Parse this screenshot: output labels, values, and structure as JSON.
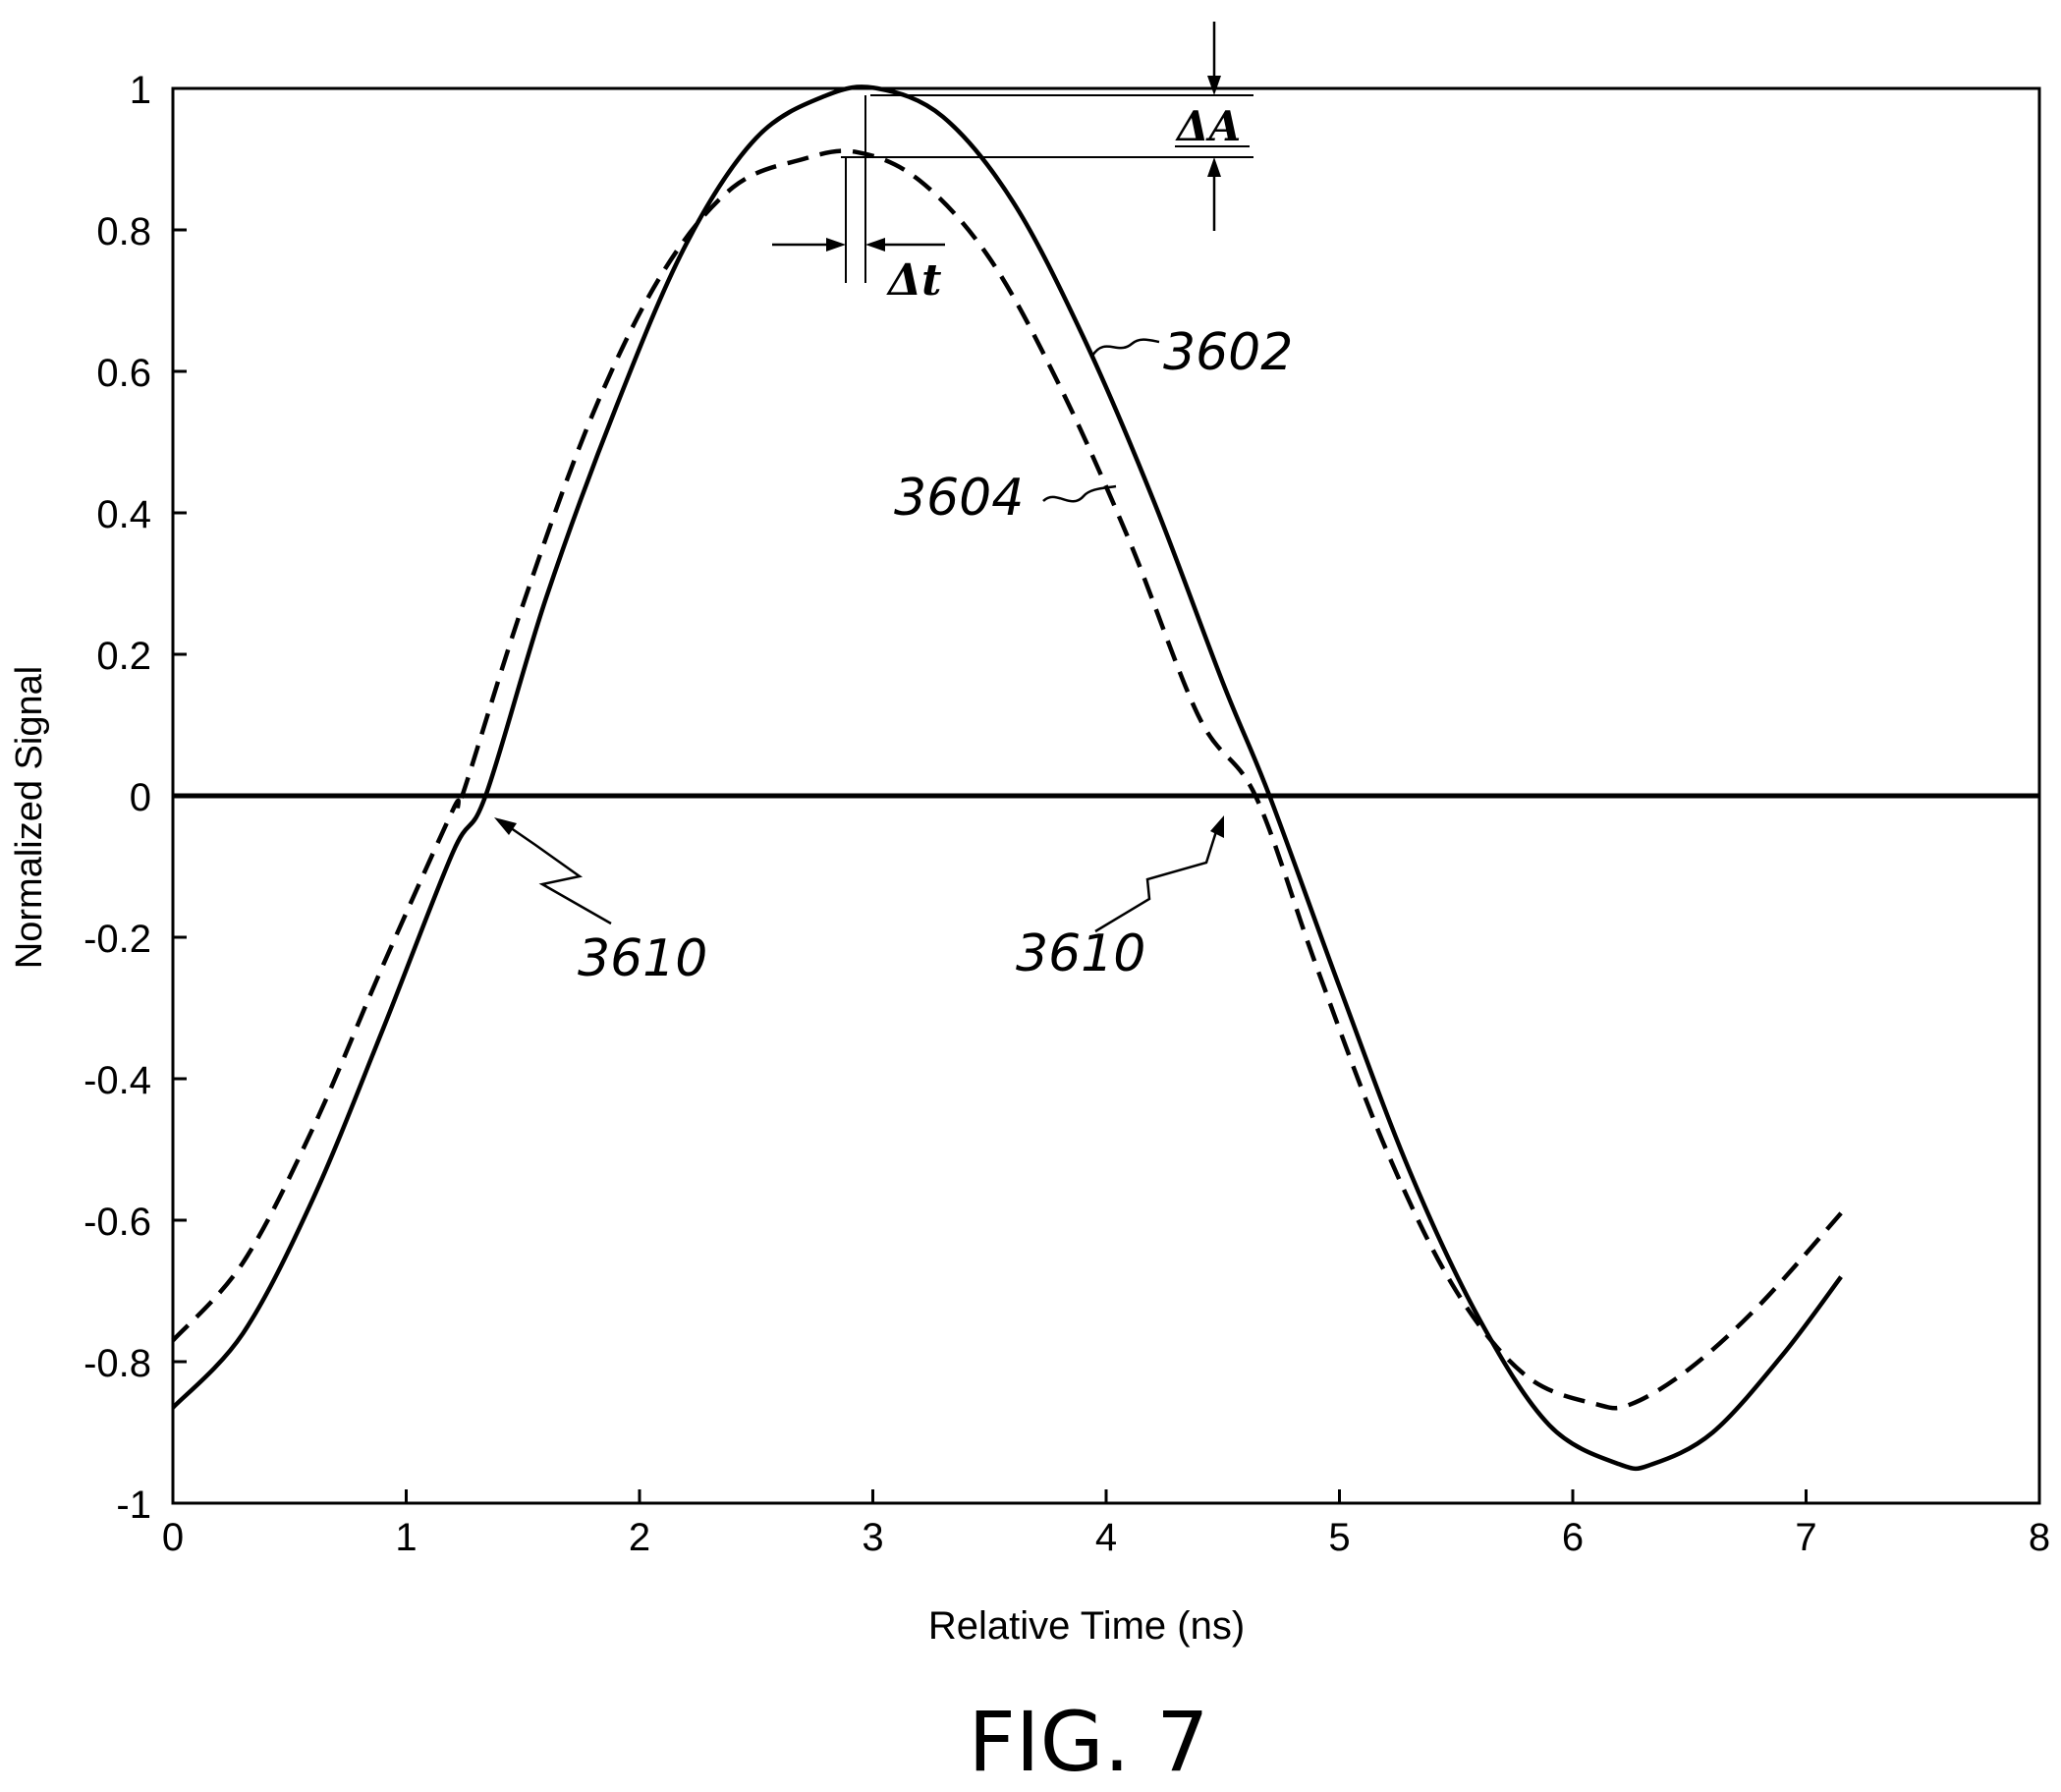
{
  "chart_data": {
    "type": "line",
    "title": "",
    "xlabel": "Relative Time (ns)",
    "ylabel": "Normalized Signal",
    "xlim": [
      0,
      8
    ],
    "ylim": [
      -1,
      1
    ],
    "x_ticks": [
      "0",
      "1",
      "2",
      "3",
      "4",
      "5",
      "6",
      "7",
      "8"
    ],
    "y_ticks": [
      "1",
      "0.8",
      "0.6",
      "0.4",
      "0.2",
      "0",
      "-0.2",
      "-0.4",
      "-0.6",
      "-0.8",
      "-1"
    ],
    "grid": false,
    "series": [
      {
        "name": "3602",
        "style": "solid",
        "x": [
          0,
          0.3,
          0.6,
          0.9,
          1.2,
          1.34,
          1.6,
          1.9,
          2.2,
          2.5,
          2.8,
          3.02,
          3.3,
          3.6,
          3.9,
          4.2,
          4.5,
          4.7,
          5.0,
          5.3,
          5.6,
          5.9,
          6.2,
          6.34,
          6.6,
          6.9,
          7.15
        ],
        "y": [
          -0.865,
          -0.76,
          -0.57,
          -0.33,
          -0.08,
          0.0,
          0.28,
          0.55,
          0.78,
          0.93,
          0.99,
          1.0,
          0.96,
          0.84,
          0.65,
          0.42,
          0.16,
          0.0,
          -0.27,
          -0.53,
          -0.74,
          -0.89,
          -0.945,
          -0.945,
          -0.9,
          -0.79,
          -0.68
        ]
      },
      {
        "name": "3604",
        "style": "dashed",
        "x": [
          0,
          0.3,
          0.6,
          0.9,
          1.2,
          1.24,
          1.5,
          1.8,
          2.1,
          2.4,
          2.7,
          2.93,
          3.2,
          3.5,
          3.8,
          4.1,
          4.4,
          4.64,
          4.9,
          5.2,
          5.5,
          5.8,
          6.1,
          6.25,
          6.5,
          6.8,
          7.15
        ],
        "y": [
          -0.77,
          -0.66,
          -0.47,
          -0.24,
          -0.02,
          0.0,
          0.27,
          0.54,
          0.74,
          0.86,
          0.9,
          0.91,
          0.87,
          0.76,
          0.58,
          0.36,
          0.11,
          0.0,
          -0.24,
          -0.5,
          -0.7,
          -0.82,
          -0.86,
          -0.86,
          -0.81,
          -0.72,
          -0.59
        ]
      }
    ],
    "annotations": {
      "delta_a": "ΔA",
      "delta_t": "Δt",
      "crossing_labels": [
        "3610",
        "3610"
      ]
    },
    "figure_label": "FIG. 7"
  }
}
